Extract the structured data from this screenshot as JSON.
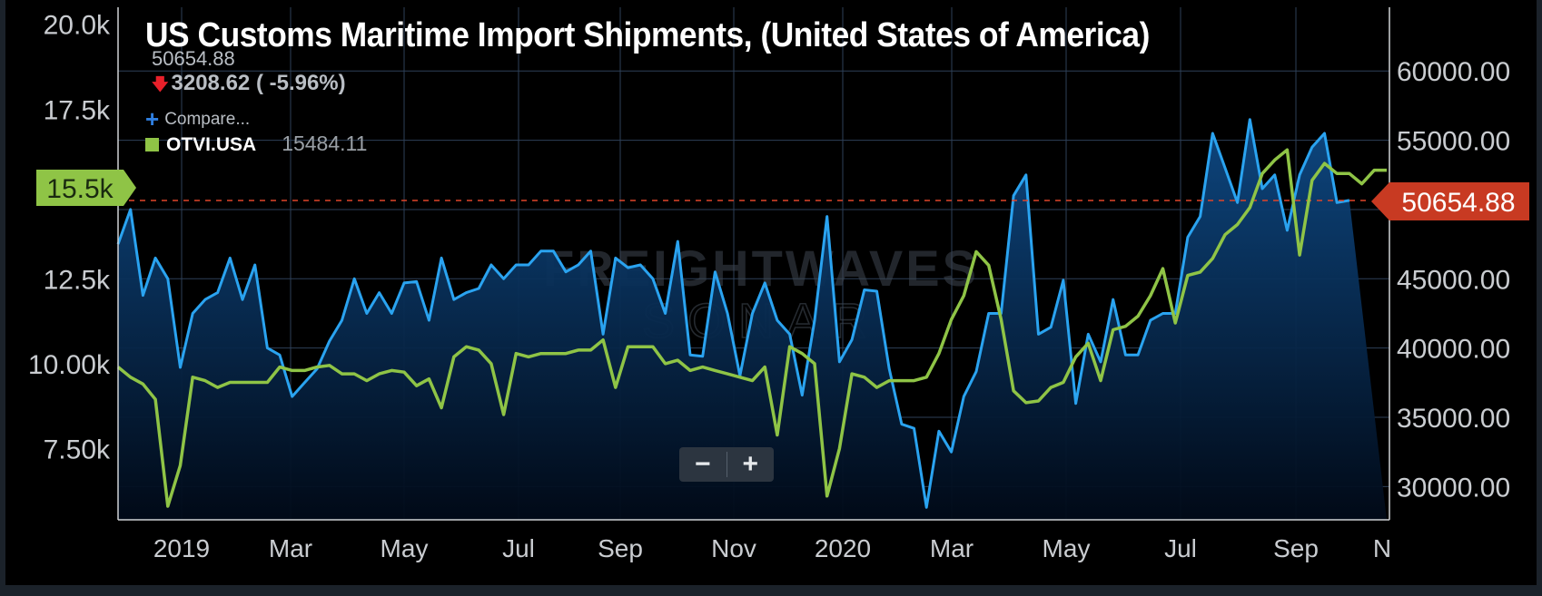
{
  "chart_data": {
    "type": "line",
    "title": "US Customs Maritime Import Shipments, (United States of America)",
    "watermark": [
      "FREIGHTWAVES",
      "SONAR"
    ],
    "header": {
      "price": "50654.88",
      "change": "3208.62 ( -5.96%)",
      "compare_label": "Compare...",
      "series_label": "OTVI.USA",
      "series_value": "15484.11"
    },
    "x_ticks": [
      "2019",
      "Mar",
      "May",
      "Jul",
      "Sep",
      "Nov",
      "2020",
      "Mar",
      "May",
      "Jul",
      "Sep",
      "N"
    ],
    "left_axis": {
      "ticks": [
        7500,
        10000,
        12500,
        17500,
        20000
      ],
      "tick_labels": [
        "7.50k",
        "10.00k",
        "12.5k",
        "17.5k",
        "20.0k"
      ],
      "range": [
        5400,
        20500
      ]
    },
    "right_axis": {
      "ticks": [
        30000,
        35000,
        40000,
        45000,
        50000,
        55000,
        60000
      ],
      "tick_labels": [
        "30000.00",
        "35000.00",
        "40000.00",
        "45000.00",
        "",
        "55000.00",
        "60000.00"
      ],
      "range": [
        27600,
        64600
      ]
    },
    "last_value_tags": {
      "left": "15.5k",
      "right": "50654.88"
    },
    "reference_line": {
      "axis": "right",
      "value": 50655
    },
    "series": [
      {
        "name": "OTVI.USA",
        "axis": "left",
        "color": "#8fc446",
        "values": [
          9900,
          9600,
          9400,
          8950,
          5800,
          7000,
          9600,
          9500,
          9300,
          9450,
          9450,
          9450,
          9450,
          9900,
          9800,
          9800,
          9900,
          9950,
          9700,
          9700,
          9500,
          9700,
          9800,
          9750,
          9350,
          9550,
          8700,
          10200,
          10500,
          10400,
          10000,
          8500,
          10300,
          10200,
          10300,
          10300,
          10300,
          10400,
          10400,
          10700,
          9300,
          10500,
          10500,
          10500,
          10000,
          10100,
          9800,
          9900,
          9800,
          9700,
          9600,
          9500,
          9900,
          7900,
          10500,
          10300,
          10000,
          6100,
          7500,
          9700,
          9600,
          9300,
          9500,
          9500,
          9500,
          9600,
          10300,
          11300,
          12000,
          13300,
          12900,
          11300,
          9200,
          8850,
          8900,
          9300,
          9450,
          10200,
          10600,
          9500,
          11000,
          11100,
          11400,
          12000,
          12800,
          11200,
          12600,
          12700,
          13100,
          13800,
          14100,
          14600,
          15600,
          16000,
          16300,
          13200,
          15400,
          15900,
          15600,
          15600,
          15300,
          15700,
          15700
        ]
      },
      {
        "name": "",
        "axis": "right",
        "color": "#2aa3f0",
        "values": [
          47500,
          50000,
          43800,
          46500,
          45000,
          38600,
          42500,
          43500,
          44000,
          46500,
          43500,
          46000,
          40000,
          39500,
          36500,
          37500,
          38500,
          40500,
          42000,
          45000,
          42500,
          44000,
          42500,
          44700,
          44800,
          42000,
          46500,
          43500,
          44000,
          44300,
          46000,
          45000,
          46000,
          46000,
          47000,
          47000,
          45500,
          46000,
          47000,
          41000,
          46500,
          45800,
          46000,
          45000,
          42500,
          47700,
          39500,
          39400,
          45500,
          42500,
          38000,
          42500,
          44700,
          42000,
          41000,
          36600,
          42000,
          49500,
          39000,
          40600,
          44200,
          44100,
          38500,
          34500,
          34200,
          28500,
          34000,
          32500,
          36500,
          38300,
          42500,
          42500,
          51000,
          52500,
          41000,
          41500,
          44900,
          36000,
          41000,
          39000,
          43500,
          39500,
          39500,
          42000,
          42500,
          42500,
          48000,
          49500,
          55500,
          53000,
          50500,
          56500,
          51500,
          52500,
          48500,
          52500,
          54500,
          55500,
          50500,
          50654.88
        ]
      }
    ]
  }
}
